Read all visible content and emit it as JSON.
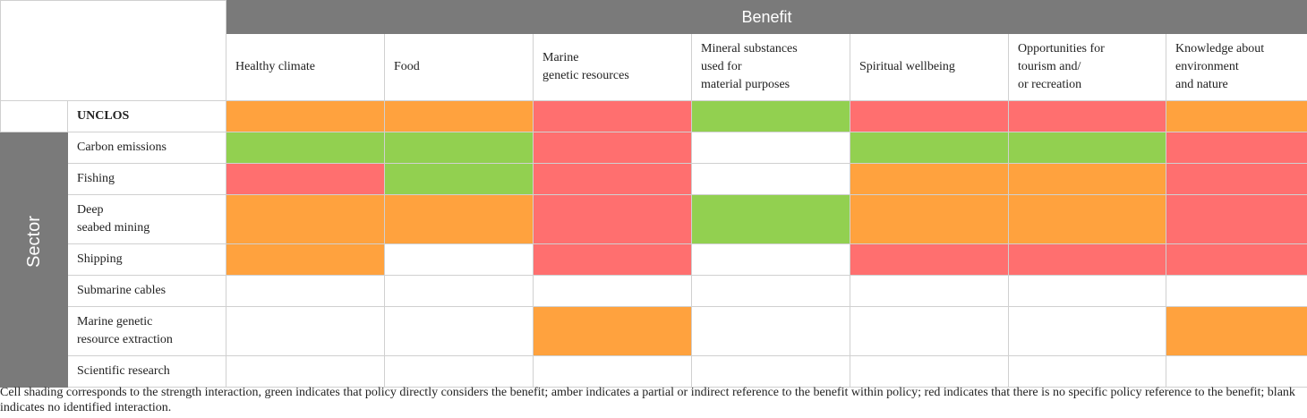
{
  "header": {
    "benefit_label": "Benefit",
    "sector_label": "Sector"
  },
  "columns": [
    "Healthy climate",
    "Food",
    "Marine\ngenetic resources",
    "Mineral substances\nused for\nmaterial purposes",
    "Spiritual wellbeing",
    "Opportunities for\ntourism and/\nor recreation",
    "Knowledge about\nenvironment\nand nature"
  ],
  "colors": {
    "green": "#92d050",
    "amber": "#ffa23e",
    "red": "#ff6f6f",
    "blank": "#ffffff",
    "band": "#7a7a7a"
  },
  "unclos_row": {
    "label": "UNCLOS",
    "cells": [
      "amber",
      "amber",
      "red",
      "green",
      "red",
      "red",
      "amber"
    ]
  },
  "sector_rows": [
    {
      "label": "Carbon emissions",
      "cells": [
        "green",
        "green",
        "red",
        "blank",
        "green",
        "green",
        "red"
      ]
    },
    {
      "label": "Fishing",
      "cells": [
        "red",
        "green",
        "red",
        "blank",
        "amber",
        "amber",
        "red"
      ]
    },
    {
      "label": "Deep\nseabed mining",
      "cells": [
        "amber",
        "amber",
        "red",
        "green",
        "amber",
        "amber",
        "red"
      ]
    },
    {
      "label": "Shipping",
      "cells": [
        "amber",
        "blank",
        "red",
        "blank",
        "red",
        "red",
        "red"
      ]
    },
    {
      "label": "Submarine cables",
      "cells": [
        "blank",
        "blank",
        "blank",
        "blank",
        "blank",
        "blank",
        "blank"
      ]
    },
    {
      "label": "Marine genetic\nresource extraction",
      "cells": [
        "blank",
        "blank",
        "amber",
        "blank",
        "blank",
        "blank",
        "amber"
      ]
    },
    {
      "label": "Scientific research",
      "cells": [
        "blank",
        "blank",
        "blank",
        "blank",
        "blank",
        "blank",
        "blank"
      ]
    }
  ],
  "caption": "Cell shading corresponds to the strength interaction, green indicates that policy directly considers the benefit; amber indicates a partial or indirect reference to the benefit within policy; red indicates that there is no specific policy reference to the benefit; blank indicates no identified interaction."
}
